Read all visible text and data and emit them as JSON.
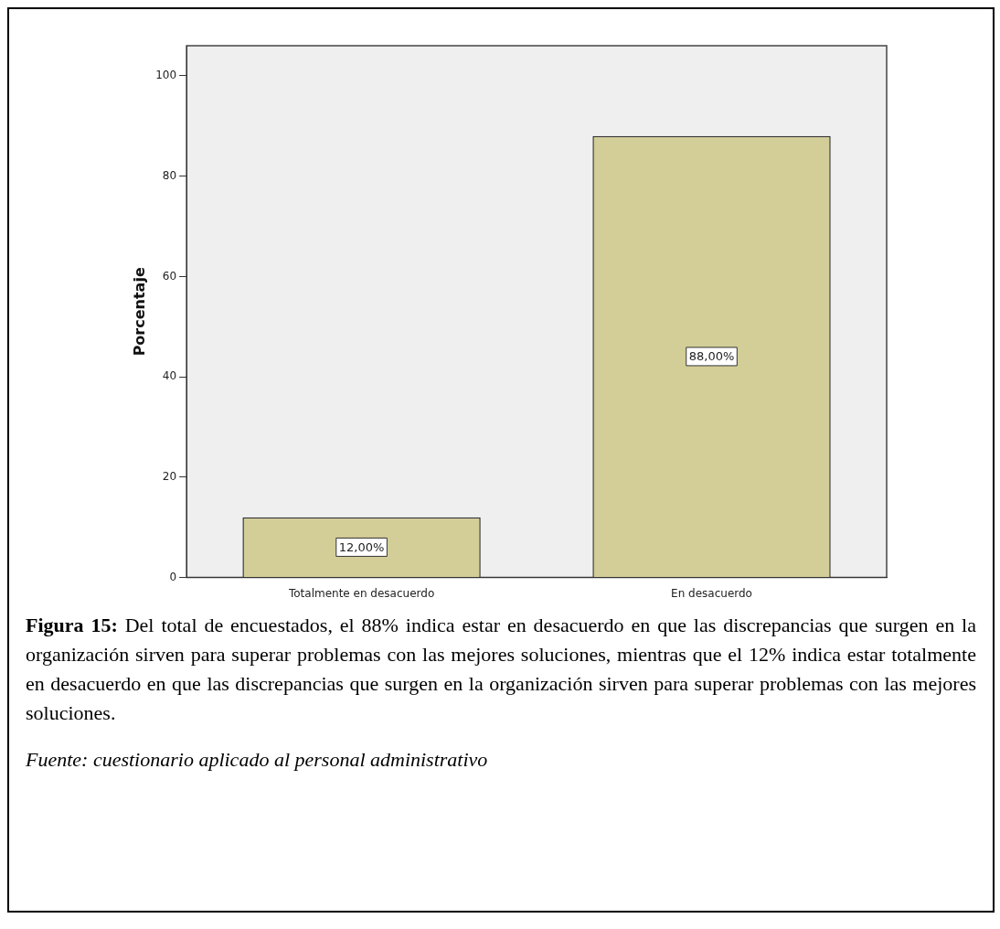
{
  "chart_data": {
    "type": "bar",
    "ylabel": "Porcentaje",
    "categories": [
      "Totalmente en desacuerdo",
      "En desacuerdo"
    ],
    "values": [
      12,
      88
    ],
    "value_labels": [
      "12,00%",
      "88,00%"
    ],
    "color": "#d3ce97",
    "ylim": [
      0,
      106
    ],
    "yticks": [
      0,
      20,
      40,
      60,
      80,
      100
    ],
    "grid": false,
    "legend": false,
    "annotations": [
      "Figura 15:",
      "Del total de encuestados, el 88% indica estar en desacuerdo en que las discrepancias que surgen en la organización sirven para superar problemas con las mejores soluciones, mientras que el 12% indica estar totalmente en desacuerdo en que las discrepancias que surgen en la organización sirven para superar problemas con las mejores soluciones.",
      "Fuente: cuestionario aplicado al personal administrativo"
    ]
  }
}
